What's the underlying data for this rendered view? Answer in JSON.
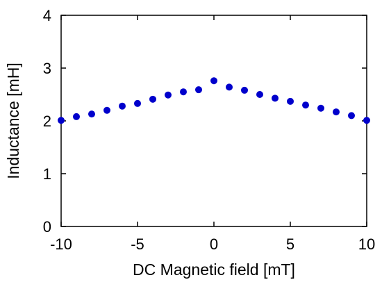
{
  "chart_data": {
    "type": "scatter",
    "title": "",
    "xlabel": "DC Magnetic field [mT]",
    "ylabel": "Inductance [mH]",
    "xlim": [
      -10,
      10
    ],
    "ylim": [
      0,
      4
    ],
    "xticks": [
      -10,
      -5,
      0,
      5,
      10
    ],
    "yticks": [
      0,
      1,
      2,
      3,
      4
    ],
    "xtick_labels": [
      "-10",
      "-5",
      "0",
      "5",
      "10"
    ],
    "ytick_labels": [
      "0",
      "1",
      "2",
      "3",
      "4"
    ],
    "grid": false,
    "legend": "none",
    "marker_color": "#0000cc",
    "series": [
      {
        "x": [
          -10,
          -9,
          -8,
          -7,
          -6,
          -5,
          -4,
          -3,
          -2,
          -1,
          0,
          1,
          2,
          3,
          4,
          5,
          6,
          7,
          8,
          9,
          10
        ],
        "y": [
          2.01,
          2.08,
          2.13,
          2.2,
          2.28,
          2.33,
          2.41,
          2.49,
          2.55,
          2.59,
          2.76,
          2.64,
          2.58,
          2.5,
          2.43,
          2.37,
          2.3,
          2.24,
          2.17,
          2.1,
          2.01
        ]
      }
    ]
  }
}
